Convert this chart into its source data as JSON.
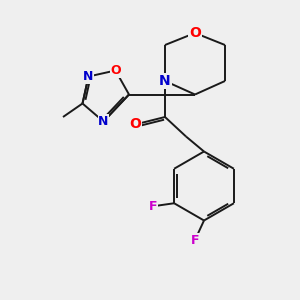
{
  "background_color": "#efefef",
  "bond_color": "#1a1a1a",
  "atom_colors": {
    "O": "#ff0000",
    "N": "#0000cc",
    "F": "#cc00cc",
    "C": "#1a1a1a"
  },
  "figsize": [
    3.0,
    3.0
  ],
  "dpi": 100,
  "lw": 1.4,
  "fontsize_hetero": 9,
  "fontsize_F": 9
}
